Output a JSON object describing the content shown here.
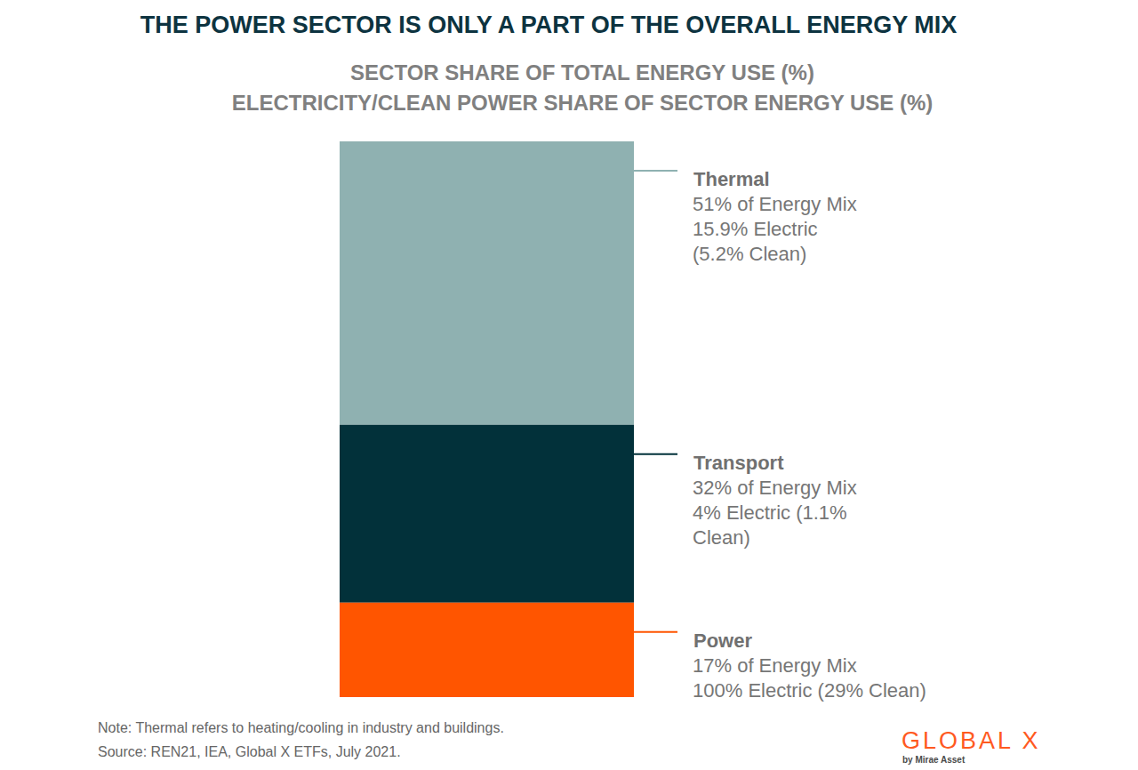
{
  "chart_data": {
    "type": "bar",
    "title": "THE POWER SECTOR IS ONLY A PART OF THE OVERALL ENERGY MIX",
    "subtitle": [
      "SECTOR SHARE OF TOTAL ENERGY USE (%)",
      "ELECTRICITY/CLEAN POWER SHARE OF SECTOR ENERGY USE (%)"
    ],
    "categories": [
      null
    ],
    "series": [
      {
        "name": "Thermal",
        "color": "#8fb1b1",
        "values": [
          51
        ],
        "value_labels": [
          "51% of Energy Mix"
        ],
        "annotation": [
          "15.9% Electric",
          "(5.2% Clean)"
        ]
      },
      {
        "name": "Transport",
        "color": "#02313a",
        "values": [
          32
        ],
        "value_labels": [
          "32% of Energy Mix"
        ],
        "annotation": [
          "4% Electric (1.1%",
          "Clean)"
        ]
      },
      {
        "name": "Power",
        "color": "#ff5500",
        "values": [
          17
        ],
        "value_labels": [
          "17% of Energy Mix"
        ],
        "annotation": [
          "100% Electric (29% Clean)"
        ]
      }
    ],
    "stacked": true,
    "data_labels": true,
    "tick_labels": false,
    "ylim": [
      0,
      100
    ],
    "notes": [
      "Note: Thermal refers to heating/cooling in industry and buildings.",
      "Source: REN21, IEA, Global X ETFs, July 2021."
    ],
    "logo": "GLOBAL X",
    "logo_subtitle": "by Mirae Asset"
  }
}
